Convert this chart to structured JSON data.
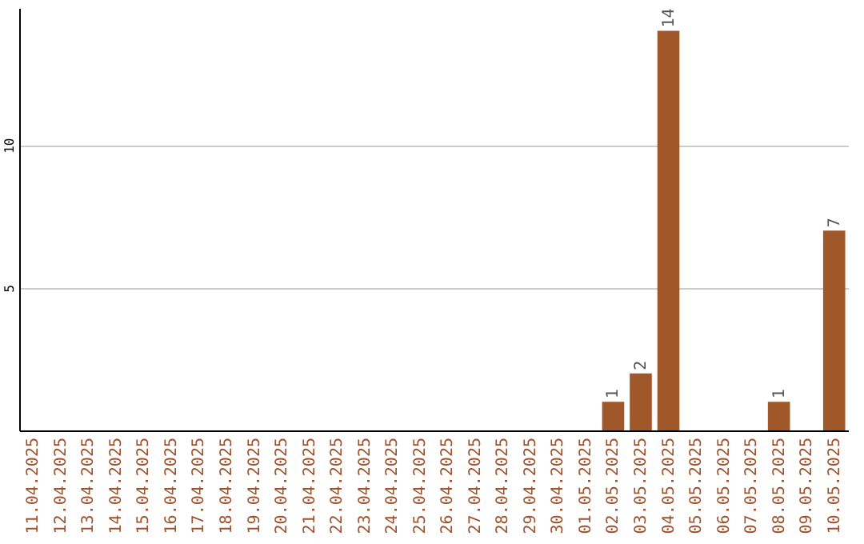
{
  "chart_data": {
    "type": "bar",
    "categories": [
      "11.04.2025",
      "12.04.2025",
      "13.04.2025",
      "14.04.2025",
      "15.04.2025",
      "16.04.2025",
      "17.04.2025",
      "18.04.2025",
      "19.04.2025",
      "20.04.2025",
      "21.04.2025",
      "22.04.2025",
      "23.04.2025",
      "24.04.2025",
      "25.04.2025",
      "26.04.2025",
      "27.04.2025",
      "28.04.2025",
      "29.04.2025",
      "30.04.2025",
      "01.05.2025",
      "02.05.2025",
      "03.05.2025",
      "04.05.2025",
      "05.05.2025",
      "06.05.2025",
      "07.05.2025",
      "08.05.2025",
      "09.05.2025",
      "10.05.2025"
    ],
    "values": [
      0,
      0,
      0,
      0,
      0,
      0,
      0,
      0,
      0,
      0,
      0,
      0,
      0,
      0,
      0,
      0,
      0,
      0,
      0,
      0,
      0,
      1,
      2,
      14,
      0,
      0,
      0,
      1,
      0,
      7
    ],
    "value_labels": [
      null,
      null,
      null,
      null,
      null,
      null,
      null,
      null,
      null,
      null,
      null,
      null,
      null,
      null,
      null,
      null,
      null,
      null,
      null,
      null,
      null,
      "1",
      "2",
      "14",
      null,
      null,
      null,
      "1",
      null,
      "7"
    ],
    "color": "#a0572a",
    "ylim": [
      0,
      14.8
    ],
    "yticks": [
      5,
      10
    ],
    "grid": "y"
  }
}
